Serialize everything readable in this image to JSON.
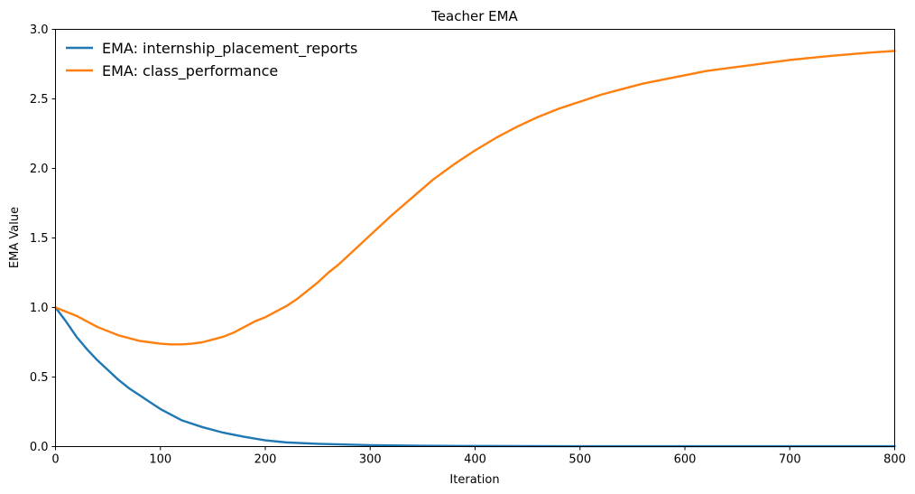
{
  "chart_data": {
    "type": "line",
    "title": "Teacher EMA",
    "xlabel": "Iteration",
    "ylabel": "EMA Value",
    "xlim": [
      0,
      800
    ],
    "ylim": [
      0,
      3.0
    ],
    "x_ticks": [
      "0",
      "100",
      "200",
      "300",
      "400",
      "500",
      "600",
      "700",
      "800"
    ],
    "y_ticks": [
      "0.0",
      "0.5",
      "1.0",
      "1.5",
      "2.0",
      "2.5",
      "3.0"
    ],
    "grid": false,
    "legend_position": "top-left",
    "series": [
      {
        "name": "EMA: internship_placement_reports",
        "color": "#1f77b4",
        "x": [
          0,
          10,
          20,
          30,
          40,
          50,
          60,
          70,
          80,
          90,
          100,
          110,
          120,
          140,
          160,
          180,
          200,
          220,
          250,
          300,
          350,
          400,
          500,
          600,
          700,
          800
        ],
        "y": [
          1.0,
          0.9,
          0.79,
          0.7,
          0.62,
          0.55,
          0.48,
          0.42,
          0.37,
          0.32,
          0.27,
          0.23,
          0.19,
          0.14,
          0.1,
          0.07,
          0.045,
          0.03,
          0.02,
          0.01,
          0.006,
          0.004,
          0.003,
          0.003,
          0.003,
          0.003
        ]
      },
      {
        "name": "EMA: class_performance",
        "color": "#ff7f0e",
        "x": [
          0,
          10,
          20,
          30,
          40,
          50,
          60,
          70,
          80,
          90,
          100,
          110,
          120,
          130,
          140,
          150,
          160,
          170,
          180,
          190,
          200,
          210,
          220,
          230,
          240,
          250,
          260,
          270,
          280,
          290,
          300,
          320,
          340,
          360,
          380,
          400,
          420,
          440,
          460,
          480,
          500,
          520,
          540,
          560,
          580,
          600,
          620,
          640,
          660,
          680,
          700,
          720,
          740,
          760,
          780,
          800
        ],
        "y": [
          1.0,
          0.97,
          0.94,
          0.9,
          0.86,
          0.83,
          0.8,
          0.78,
          0.76,
          0.75,
          0.74,
          0.735,
          0.735,
          0.74,
          0.75,
          0.77,
          0.79,
          0.82,
          0.86,
          0.9,
          0.93,
          0.97,
          1.01,
          1.06,
          1.12,
          1.18,
          1.25,
          1.31,
          1.38,
          1.45,
          1.52,
          1.66,
          1.79,
          1.92,
          2.03,
          2.13,
          2.22,
          2.3,
          2.37,
          2.43,
          2.48,
          2.53,
          2.57,
          2.61,
          2.64,
          2.67,
          2.7,
          2.72,
          2.74,
          2.76,
          2.78,
          2.795,
          2.81,
          2.823,
          2.835,
          2.845
        ]
      }
    ]
  }
}
